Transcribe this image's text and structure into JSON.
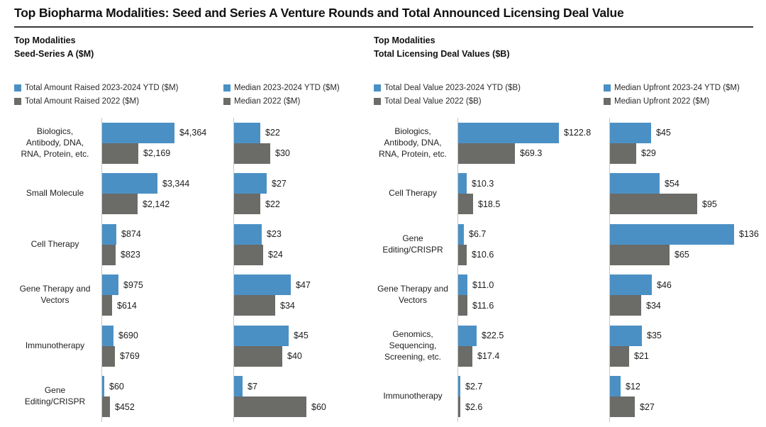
{
  "page": {
    "title": "Top Biopharma Modalities: Seed and Series A Venture Rounds and Total Announced Licensing Deal Value"
  },
  "sections": [
    {
      "line1": "Top Modalities",
      "line2": "Seed-Series A ($M)"
    },
    {
      "line1": "Top Modalities",
      "line2": "Total Licensing Deal Values ($B)"
    }
  ],
  "colors": {
    "series_current": "#4b90c4",
    "series_prior": "#6b6b67"
  },
  "chart_data": [
    {
      "type": "bar",
      "orientation": "horizontal",
      "group": "Seed-Series A ($M)",
      "legend": [
        "Total Amount Raised 2023-2024 YTD ($M)",
        "Total Amount Raised 2022 ($M)"
      ],
      "legend_position": "top",
      "grid": false,
      "xlim": [
        0,
        4600
      ],
      "categories": [
        [
          "Biologics,",
          "Antibody, DNA,",
          "RNA, Protein, etc."
        ],
        [
          "Small Molecule"
        ],
        [
          "Cell Therapy"
        ],
        [
          "Gene Therapy and",
          "Vectors"
        ],
        [
          "Immunotherapy"
        ],
        [
          "Gene",
          "Editing/CRISPR"
        ]
      ],
      "series": [
        {
          "name": "Total Amount Raised 2023-2024 YTD ($M)",
          "color": "#4b90c4",
          "values": [
            4364,
            3344,
            874,
            975,
            690,
            60
          ],
          "labels": [
            "$4,364",
            "$3,344",
            "$874",
            "$975",
            "$690",
            "$60"
          ]
        },
        {
          "name": "Total Amount Raised 2022 ($M)",
          "color": "#6b6b67",
          "values": [
            2169,
            2142,
            823,
            614,
            769,
            452
          ],
          "labels": [
            "$2,169",
            "$2,142",
            "$823",
            "$614",
            "$769",
            "$452"
          ]
        }
      ]
    },
    {
      "type": "bar",
      "orientation": "horizontal",
      "group": "Seed-Series A ($M)",
      "legend": [
        "Median 2023-2024 YTD ($M)",
        "Median 2022 ($M)"
      ],
      "legend_position": "top",
      "grid": false,
      "xlim": [
        0,
        62
      ],
      "categories": [
        [
          "Biologics,",
          "Antibody, DNA,",
          "RNA, Protein, etc."
        ],
        [
          "Small Molecule"
        ],
        [
          "Cell Therapy"
        ],
        [
          "Gene Therapy and",
          "Vectors"
        ],
        [
          "Immunotherapy"
        ],
        [
          "Gene",
          "Editing/CRISPR"
        ]
      ],
      "series": [
        {
          "name": "Median 2023-2024 YTD ($M)",
          "color": "#4b90c4",
          "values": [
            22,
            27,
            23,
            47,
            45,
            7
          ],
          "labels": [
            "$22",
            "$27",
            "$23",
            "$47",
            "$45",
            "$7"
          ]
        },
        {
          "name": "Median 2022 ($M)",
          "color": "#6b6b67",
          "values": [
            30,
            22,
            24,
            34,
            40,
            60
          ],
          "labels": [
            "$30",
            "$22",
            "$24",
            "$34",
            "$40",
            "$60"
          ]
        }
      ]
    },
    {
      "type": "bar",
      "orientation": "horizontal",
      "group": "Total Licensing Deal Values ($B)",
      "legend": [
        "Total Deal Value 2023-2024 YTD ($B)",
        "Total Deal Value 2022 ($B)"
      ],
      "legend_position": "top",
      "grid": false,
      "xlim": [
        0,
        130
      ],
      "categories": [
        [
          "Biologics,",
          "Antibody, DNA,",
          "RNA, Protein, etc."
        ],
        [
          "Cell Therapy"
        ],
        [
          "Gene",
          "Editing/CRISPR"
        ],
        [
          "Gene Therapy and",
          "Vectors"
        ],
        [
          "Genomics,",
          "Sequencing,",
          "Screening, etc."
        ],
        [
          "Immunotherapy"
        ]
      ],
      "series": [
        {
          "name": "Total Deal Value 2023-2024 YTD ($B)",
          "color": "#4b90c4",
          "values": [
            122.8,
            10.3,
            6.7,
            11.0,
            22.5,
            2.7
          ],
          "labels": [
            "$122.8",
            "$10.3",
            "$6.7",
            "$11.0",
            "$22.5",
            "$2.7"
          ]
        },
        {
          "name": "Total Deal Value 2022 ($B)",
          "color": "#6b6b67",
          "values": [
            69.3,
            18.5,
            10.6,
            11.6,
            17.4,
            2.6
          ],
          "labels": [
            "$69.3",
            "$18.5",
            "$10.6",
            "$11.6",
            "$17.4",
            "$2.6"
          ]
        }
      ]
    },
    {
      "type": "bar",
      "orientation": "horizontal",
      "group": "Total Licensing Deal Values ($B)",
      "legend": [
        "Median Upfront 2023-24 YTD ($M)",
        "Median Upfront 2022 ($M)"
      ],
      "legend_position": "top",
      "grid": false,
      "xlim": [
        0,
        140
      ],
      "categories": [
        [
          "Biologics,",
          "Antibody, DNA,",
          "RNA, Protein, etc."
        ],
        [
          "Cell Therapy"
        ],
        [
          "Gene",
          "Editing/CRISPR"
        ],
        [
          "Gene Therapy and",
          "Vectors"
        ],
        [
          "Genomics,",
          "Sequencing,",
          "Screening, etc."
        ],
        [
          "Immunotherapy"
        ]
      ],
      "series": [
        {
          "name": "Median Upfront 2023-24 YTD ($M)",
          "color": "#4b90c4",
          "values": [
            45,
            54,
            136,
            46,
            35,
            12
          ],
          "labels": [
            "$45",
            "$54",
            "$136",
            "$46",
            "$35",
            "$12"
          ]
        },
        {
          "name": "Median Upfront 2022 ($M)",
          "color": "#6b6b67",
          "values": [
            29,
            95,
            65,
            34,
            21,
            27
          ],
          "labels": [
            "$29",
            "$95",
            "$65",
            "$34",
            "$21",
            "$27"
          ]
        }
      ]
    }
  ]
}
